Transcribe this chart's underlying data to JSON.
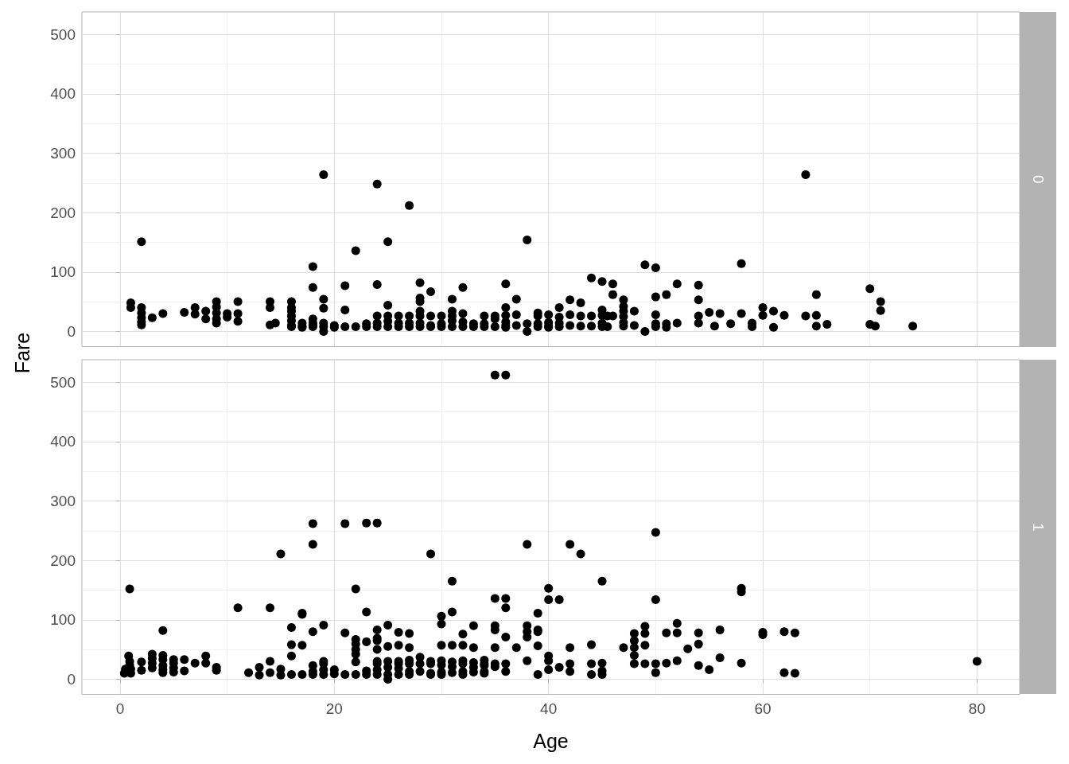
{
  "chart_data": [
    {
      "type": "scatter",
      "annotations": [
        "0"
      ],
      "ylabel": "Fare",
      "xlim": [
        -3.56,
        83.98
      ],
      "ylim": [
        -25.6,
        537.9
      ],
      "xticks": [
        0,
        20,
        40,
        60,
        80
      ],
      "yticks": [
        0,
        100,
        200,
        300,
        400,
        500
      ],
      "grid": true,
      "tick_labels": "y",
      "marker": "circle",
      "series": [
        {
          "color": "#000000",
          "x": [
            1,
            1,
            2,
            2,
            2,
            2,
            2,
            2,
            3,
            4,
            6,
            7,
            7,
            8,
            8,
            9,
            9,
            9,
            9,
            9,
            10,
            10,
            11,
            11,
            11,
            14,
            14,
            14,
            14.5,
            16,
            16,
            16,
            16,
            16,
            16,
            16,
            17,
            17,
            17,
            18,
            18,
            18,
            18,
            18,
            18,
            19,
            19,
            19,
            19,
            19,
            19,
            20,
            20,
            21,
            21,
            21,
            22,
            22,
            23,
            23,
            24,
            24,
            24,
            24,
            24,
            25,
            25,
            25,
            25,
            25,
            26,
            26,
            26,
            27,
            27,
            27,
            27,
            28,
            28,
            28,
            28,
            28,
            28,
            28,
            29,
            29,
            29,
            29,
            30,
            30,
            30,
            31,
            31,
            31,
            31,
            31,
            32,
            32,
            32,
            32,
            33,
            33,
            34,
            34,
            34,
            35,
            35,
            35,
            36,
            36,
            36,
            36,
            36,
            36,
            37,
            37,
            37,
            38,
            38,
            38,
            39,
            39,
            39,
            39,
            40,
            40,
            40,
            40,
            41,
            41,
            41,
            41,
            42,
            42,
            42,
            43,
            43,
            43,
            44,
            44,
            44,
            45,
            45,
            45,
            45,
            45,
            45.5,
            45.5,
            46,
            46,
            46,
            47,
            47,
            47,
            47,
            47,
            47,
            48,
            48,
            49,
            49,
            50,
            50,
            50,
            50,
            50,
            51,
            51,
            51,
            52,
            52,
            54,
            54,
            54,
            54,
            55,
            55.5,
            56,
            57,
            58,
            58,
            59,
            59,
            60,
            60,
            61,
            61,
            62,
            64,
            64,
            65,
            65,
            65,
            66,
            70,
            70,
            70.5,
            71,
            71,
            74
          ],
          "values": [
            48,
            40,
            151,
            40,
            31,
            23,
            16,
            11,
            23,
            30,
            32,
            40,
            29,
            34,
            21,
            50,
            41,
            31,
            21,
            14,
            30,
            24,
            50,
            30,
            17,
            50,
            40,
            11,
            14,
            50,
            40,
            34,
            26,
            18,
            10,
            8,
            14,
            9,
            7,
            109,
            74,
            21,
            14,
            11,
            8,
            264,
            54,
            39,
            14,
            8,
            0,
            10,
            7,
            77,
            36,
            8,
            136,
            8,
            13,
            8,
            248,
            79,
            26,
            14,
            8,
            151,
            44,
            26,
            17,
            8,
            26,
            14,
            8,
            212,
            26,
            14,
            8,
            82,
            56,
            50,
            34,
            26,
            14,
            8,
            67,
            26,
            10,
            8,
            26,
            13,
            8,
            54,
            34,
            26,
            18,
            8,
            74,
            30,
            16,
            8,
            13,
            8,
            26,
            13,
            8,
            26,
            21,
            8,
            80,
            40,
            27,
            16,
            10,
            7,
            54,
            28,
            10,
            154,
            13,
            0,
            31,
            26,
            13,
            8,
            28,
            15,
            9,
            7,
            40,
            24,
            14,
            8,
            53,
            28,
            10,
            48,
            26,
            9,
            90,
            26,
            9,
            84,
            36,
            27,
            14,
            8,
            26,
            8,
            80,
            62,
            26,
            53,
            42,
            34,
            25,
            15,
            9,
            34,
            10,
            112,
            0,
            107,
            58,
            28,
            13,
            8,
            62,
            13,
            7,
            80,
            14,
            78,
            53,
            26,
            14,
            32,
            9,
            30,
            13,
            114,
            30,
            14,
            8,
            40,
            27,
            34,
            7,
            27,
            264,
            26,
            62,
            27,
            9,
            12,
            72,
            12,
            9,
            50,
            35,
            9
          ]
        }
      ]
    },
    {
      "type": "scatter",
      "annotations": [
        "1"
      ],
      "xlabel": "Age",
      "xlim": [
        -3.56,
        83.98
      ],
      "ylim": [
        -25.6,
        537.9
      ],
      "xticks": [
        0,
        20,
        40,
        60,
        80
      ],
      "yticks": [
        0,
        100,
        200,
        300,
        400,
        500
      ],
      "grid": true,
      "marker": "circle",
      "series": [
        {
          "color": "#000000",
          "x": [
            0.4,
            0.5,
            0.9,
            0.8,
            0.9,
            0.9,
            1,
            1,
            2,
            2,
            3,
            3,
            3,
            3,
            4,
            4,
            4,
            4,
            4,
            4,
            5,
            5,
            5,
            5,
            6,
            6,
            7,
            8,
            8,
            9,
            9,
            11,
            12,
            13,
            13,
            14,
            14,
            14,
            15,
            15,
            15,
            16,
            16,
            16,
            16,
            17,
            17,
            17,
            17,
            18,
            18,
            18,
            18,
            18,
            18,
            19,
            19,
            19,
            19,
            19,
            20,
            20,
            21,
            21,
            21,
            22,
            22,
            22,
            22,
            22,
            22,
            22,
            23,
            23,
            23,
            23,
            23,
            24,
            24,
            24,
            24,
            24,
            24,
            24,
            24,
            24,
            25,
            25,
            25,
            25,
            25,
            25,
            26,
            26,
            26,
            26,
            26,
            26,
            27,
            27,
            27,
            27,
            27,
            27,
            28,
            28,
            28,
            29,
            29,
            29,
            29,
            29,
            30,
            30,
            30,
            30,
            30,
            30,
            30,
            31,
            31,
            31,
            31,
            31,
            31,
            32,
            32,
            32,
            32,
            32,
            32,
            33,
            33,
            33,
            33,
            33,
            34,
            34,
            34,
            34,
            34,
            35,
            35,
            35,
            35,
            35,
            35,
            35,
            36,
            36,
            36,
            36,
            36,
            36,
            37,
            38,
            38,
            38,
            38,
            38,
            39,
            39,
            39,
            39,
            39,
            40,
            40,
            40,
            40,
            40,
            41,
            41,
            42,
            42,
            42,
            42,
            43,
            44,
            44,
            44,
            45,
            45,
            45,
            45,
            47,
            48,
            48,
            48,
            48,
            48,
            49,
            49,
            49,
            49,
            50,
            50,
            50,
            50,
            51,
            51,
            52,
            52,
            52,
            53,
            54,
            54,
            54,
            55,
            56,
            56,
            58,
            58,
            58,
            60,
            60,
            62,
            62,
            63,
            63,
            80
          ],
          "values": [
            10,
            17,
            152,
            39,
            30,
            24,
            17,
            10,
            29,
            15,
            42,
            35,
            27,
            19,
            82,
            40,
            33,
            23,
            16,
            11,
            33,
            27,
            19,
            12,
            33,
            14,
            27,
            39,
            27,
            20,
            15,
            120,
            11,
            20,
            7,
            120,
            30,
            11,
            211,
            17,
            7,
            87,
            58,
            39,
            8,
            111,
            109,
            57,
            8,
            262,
            227,
            80,
            23,
            13,
            8,
            91,
            30,
            26,
            16,
            8,
            16,
            9,
            262,
            78,
            8,
            152,
            67,
            59,
            50,
            42,
            29,
            8,
            263,
            113,
            63,
            14,
            8,
            263,
            83,
            69,
            65,
            50,
            30,
            26,
            16,
            8,
            91,
            55,
            30,
            20,
            8,
            0,
            79,
            57,
            30,
            26,
            18,
            8,
            77,
            53,
            32,
            26,
            13,
            8,
            37,
            26,
            13,
            211,
            30,
            26,
            10,
            8,
            106,
            93,
            57,
            31,
            24,
            12,
            8,
            165,
            113,
            57,
            29,
            21,
            11,
            76,
            57,
            31,
            26,
            13,
            8,
            90,
            53,
            28,
            20,
            12,
            32,
            26,
            23,
            13,
            10,
            512,
            136,
            90,
            83,
            53,
            26,
            21,
            512,
            136,
            120,
            71,
            26,
            13,
            53,
            227,
            90,
            80,
            71,
            31,
            111,
            83,
            80,
            56,
            8,
            153,
            134,
            39,
            31,
            16,
            134,
            20,
            227,
            53,
            26,
            13,
            211,
            58,
            26,
            8,
            165,
            27,
            14,
            8,
            53,
            77,
            65,
            53,
            40,
            26,
            89,
            77,
            57,
            26,
            247,
            134,
            26,
            11,
            78,
            27,
            94,
            78,
            31,
            51,
            78,
            59,
            23,
            16,
            83,
            36,
            153,
            147,
            27,
            79,
            75,
            80,
            11,
            78,
            10,
            30
          ]
        }
      ]
    }
  ]
}
